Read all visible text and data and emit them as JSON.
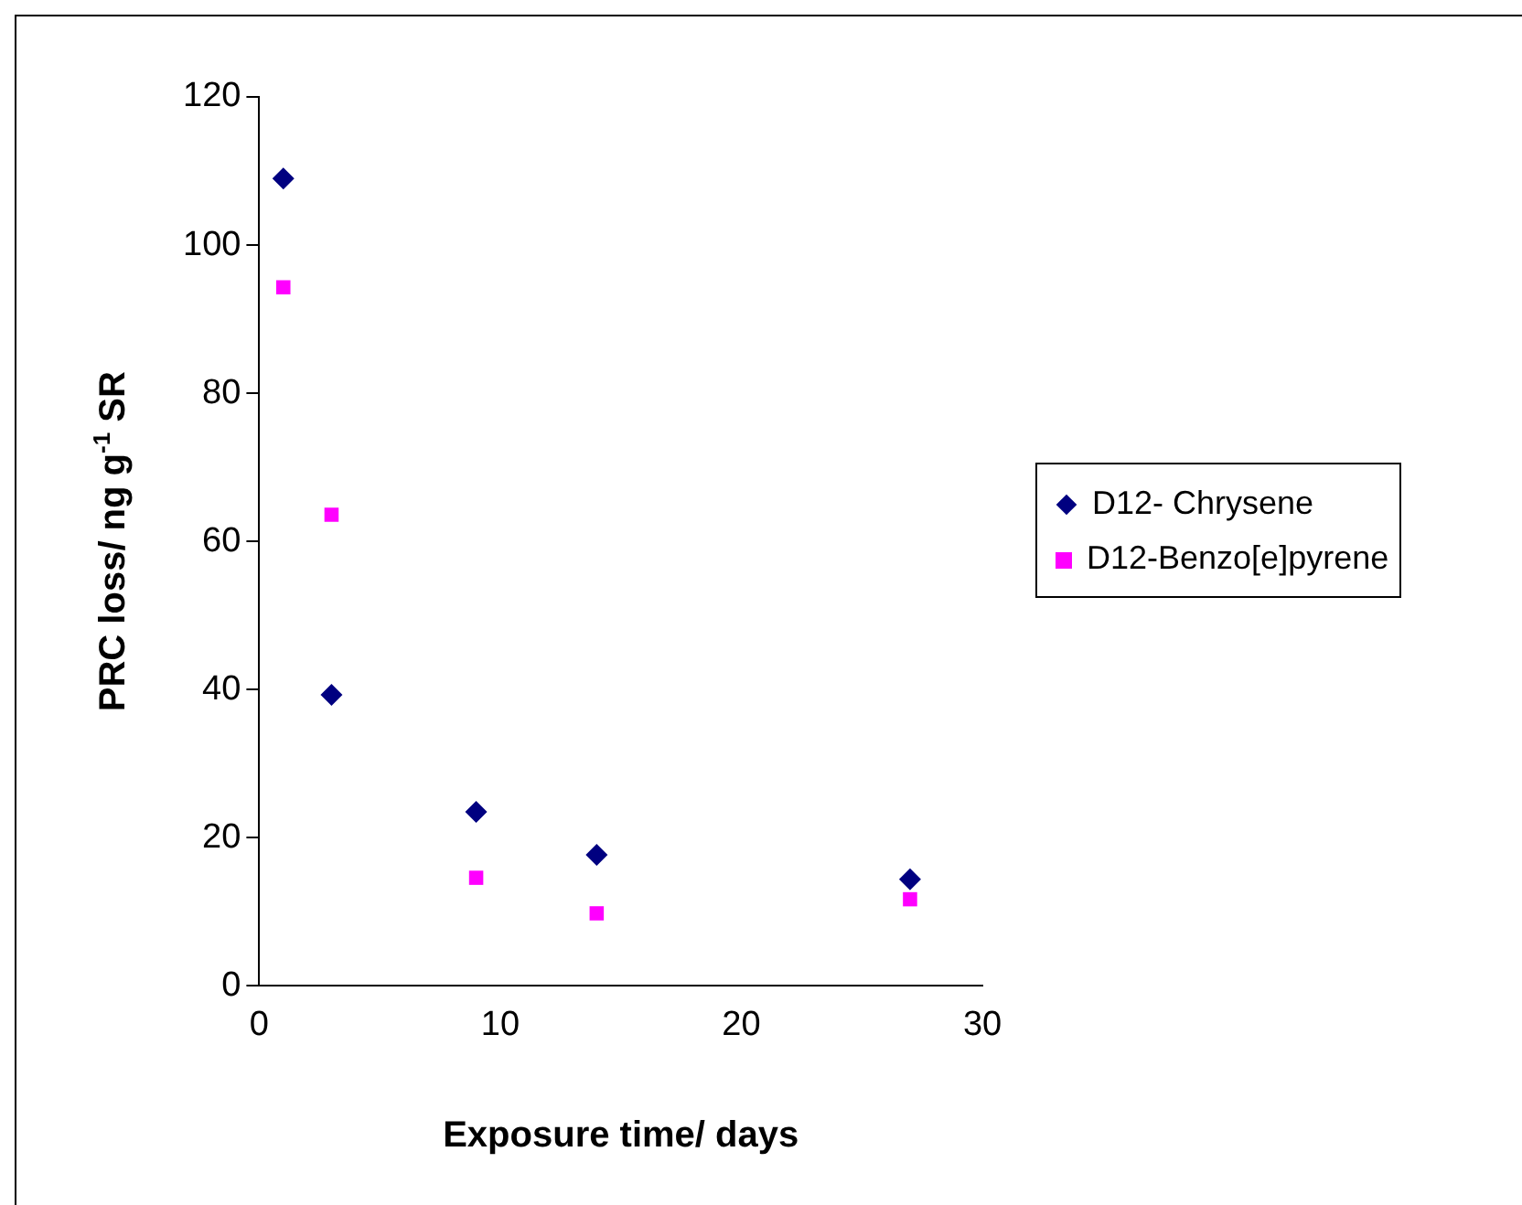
{
  "chart_data": {
    "type": "scatter",
    "xlabel": "Exposure time/ days",
    "ylabel": "PRC loss/ ng g$^{-1}$ SR",
    "x": [
      1,
      3,
      9,
      14,
      27
    ],
    "series": [
      {
        "name": "D12- Chrysene",
        "color": "#000080",
        "marker": "diamond",
        "values": [
          109,
          39.3,
          23.5,
          17.7,
          14.4
        ]
      },
      {
        "name": "D12-Benzo[e]pyrene",
        "color": "#ff00ff",
        "marker": "square",
        "values": [
          94.3,
          63.6,
          14.6,
          9.8,
          11.7
        ]
      }
    ],
    "xlim": [
      0,
      30
    ],
    "xticks": [
      0,
      10,
      20,
      30
    ],
    "ylim": [
      0,
      120
    ],
    "yticks": [
      0,
      20,
      40,
      60,
      80,
      100,
      120
    ],
    "grid": false,
    "legend": "right"
  }
}
